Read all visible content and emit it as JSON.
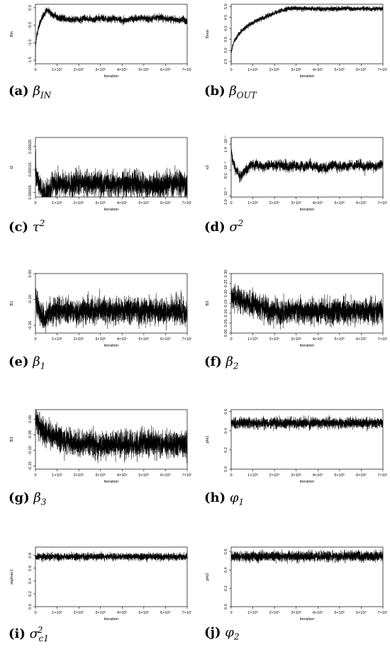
{
  "x_axis": {
    "label": "iteration",
    "ticks": [
      {
        "value": 0,
        "label": "0"
      },
      {
        "value": 100000,
        "label": "1×10⁵"
      },
      {
        "value": 200000,
        "label": "2×10⁵"
      },
      {
        "value": 300000,
        "label": "3×10⁵"
      },
      {
        "value": 400000,
        "label": "4×10⁵"
      },
      {
        "value": 500000,
        "label": "5×10⁵"
      },
      {
        "value": 600000,
        "label": "6×10⁵"
      },
      {
        "value": 700000,
        "label": "7×10⁵"
      }
    ]
  },
  "captions": [
    {
      "tag": "(a)",
      "symbol": "β",
      "sub": "IN",
      "sup": ""
    },
    {
      "tag": "(b)",
      "symbol": "β",
      "sub": "OUT",
      "sup": ""
    },
    {
      "tag": "(c)",
      "symbol": "τ",
      "sub": "",
      "sup": "2"
    },
    {
      "tag": "(d)",
      "symbol": "σ",
      "sub": "",
      "sup": "2"
    },
    {
      "tag": "(e)",
      "symbol": "β",
      "sub": "1",
      "sup": ""
    },
    {
      "tag": "(f)",
      "symbol": "β",
      "sub": "2",
      "sup": ""
    },
    {
      "tag": "(g)",
      "symbol": "β",
      "sub": "3",
      "sup": ""
    },
    {
      "tag": "(h)",
      "symbol": "φ",
      "sub": "1",
      "sup": ""
    },
    {
      "tag": "(i)",
      "symbol": "σ",
      "sub": "c1",
      "sup": "2"
    },
    {
      "tag": "(j)",
      "symbol": "φ",
      "sub": "2",
      "sup": ""
    }
  ],
  "chart_data": [
    {
      "type": "line",
      "ylabel": "Bin",
      "ylim": [
        -1.6,
        0.1
      ],
      "yticks": [
        {
          "value": 0,
          "label": "0.0"
        },
        {
          "value": -0.5,
          "label": "-0.5"
        },
        {
          "value": -1.0,
          "label": "-1.0"
        },
        {
          "value": -1.5,
          "label": "-1.5"
        }
      ],
      "xlim": [
        0,
        700000
      ],
      "trace": {
        "start": -1.5,
        "burnin_end": -0.05,
        "burnin_iters": 50000,
        "mean": -0.32,
        "noise": 0.07,
        "wander": 0.06
      }
    },
    {
      "type": "line",
      "ylabel": "Bout",
      "ylim": [
        2.4,
        5.1
      ],
      "yticks": [
        {
          "value": 2.5,
          "label": "2.5"
        },
        {
          "value": 3.0,
          "label": "3.0"
        },
        {
          "value": 3.5,
          "label": "3.5"
        },
        {
          "value": 4.0,
          "label": "4.0"
        },
        {
          "value": 4.5,
          "label": "4.5"
        },
        {
          "value": 5.0,
          "label": "5.0"
        }
      ],
      "xlim": [
        0,
        700000
      ],
      "trace": {
        "start": 2.5,
        "burnin_end": 4.4,
        "burnin_iters": 120000,
        "mean": 4.9,
        "noise": 0.07,
        "wander": 0.04
      }
    },
    {
      "type": "line",
      "ylabel": "t2",
      "ylim": [
        3e-05,
        0.00029
      ],
      "yticks": [
        {
          "value": 5e-05,
          "label": "0.00005"
        },
        {
          "value": 0.00015,
          "label": "0.00015"
        },
        {
          "value": 0.00025,
          "label": "0.00025"
        }
      ],
      "xlim": [
        0,
        700000
      ],
      "trace": {
        "start": 0.00021,
        "burnin_end": 4e-05,
        "burnin_iters": 40000,
        "mean": 8.5e-05,
        "noise": 4e-05,
        "wander": 1e-05
      }
    },
    {
      "type": "line",
      "ylabel": "s2",
      "ylim": [
        1.8e-08,
        1.55e-07
      ],
      "yticks": [
        {
          "value": 2e-08,
          "label": "2.0 · 10⁻⁸"
        },
        {
          "value": 8e-08,
          "label": "8.0 · 10⁻⁸"
        },
        {
          "value": 1.4e-07,
          "label": "1.4 · 10⁻⁷"
        }
      ],
      "xlim": [
        0,
        700000
      ],
      "trace": {
        "start": 1.45e-07,
        "burnin_end": 6.5e-08,
        "burnin_iters": 40000,
        "mean": 8.8e-08,
        "noise": 8e-09,
        "wander": 1e-08
      }
    },
    {
      "type": "line",
      "ylabel": "B1",
      "ylim": [
        -0.23,
        0.0
      ],
      "yticks": [
        {
          "value": 0.0,
          "label": "0.00"
        },
        {
          "value": -0.1,
          "label": "-0.10"
        },
        {
          "value": -0.2,
          "label": "-0.20"
        }
      ],
      "xlim": [
        0,
        700000
      ],
      "trace": {
        "start": -0.05,
        "burnin_end": -0.17,
        "burnin_iters": 40000,
        "mean": -0.145,
        "noise": 0.035,
        "wander": 0.01
      }
    },
    {
      "type": "line",
      "ylabel": "B2",
      "ylim": [
        0.0,
        0.3
      ],
      "yticks": [
        {
          "value": 0.0,
          "label": "0.00"
        },
        {
          "value": 0.05,
          "label": "0.05"
        },
        {
          "value": 0.1,
          "label": "0.10"
        },
        {
          "value": 0.15,
          "label": "0.15"
        },
        {
          "value": 0.2,
          "label": "0.20"
        },
        {
          "value": 0.25,
          "label": "0.25"
        },
        {
          "value": 0.3,
          "label": "0.30"
        }
      ],
      "xlim": [
        0,
        700000
      ],
      "trace": {
        "start": 0.22,
        "burnin_end": 0.15,
        "burnin_iters": 80000,
        "mean": 0.11,
        "noise": 0.045,
        "wander": 0.008
      }
    },
    {
      "type": "line",
      "ylabel": "B3",
      "ylim": [
        -0.16,
        0.03
      ],
      "yticks": [
        {
          "value": 0.0,
          "label": "0.00"
        },
        {
          "value": -0.05,
          "label": "-0.05"
        },
        {
          "value": -0.1,
          "label": "-0.10"
        },
        {
          "value": -0.15,
          "label": "-0.15"
        }
      ],
      "xlim": [
        0,
        700000
      ],
      "trace": {
        "start": 0.02,
        "burnin_end": -0.06,
        "burnin_iters": 90000,
        "mean": -0.08,
        "noise": 0.03,
        "wander": 0.006
      }
    },
    {
      "type": "line",
      "ylabel": "phi1",
      "ylim": [
        0.0,
        0.62
      ],
      "yticks": [
        {
          "value": 0.0,
          "label": "0.0"
        },
        {
          "value": 0.2,
          "label": "0.2"
        },
        {
          "value": 0.4,
          "label": "0.4"
        },
        {
          "value": 0.6,
          "label": "0.6"
        }
      ],
      "xlim": [
        0,
        700000
      ],
      "trace": {
        "start": 0.48,
        "burnin_end": 0.48,
        "burnin_iters": 0,
        "mean": 0.48,
        "noise": 0.04,
        "wander": 0.0
      }
    },
    {
      "type": "line",
      "ylabel": "sigmac1",
      "ylim": [
        0.0,
        0.93
      ],
      "yticks": [
        {
          "value": 0.0,
          "label": "0.0"
        },
        {
          "value": 0.2,
          "label": "0.2"
        },
        {
          "value": 0.4,
          "label": "0.4"
        },
        {
          "value": 0.6,
          "label": "0.6"
        },
        {
          "value": 0.8,
          "label": "0.8"
        }
      ],
      "xlim": [
        0,
        700000
      ],
      "trace": {
        "start": 0.78,
        "burnin_end": 0.78,
        "burnin_iters": 0,
        "mean": 0.78,
        "noise": 0.04,
        "wander": 0.0
      }
    },
    {
      "type": "line",
      "ylabel": "phi2",
      "ylim": [
        0.0,
        0.65
      ],
      "yticks": [
        {
          "value": 0.0,
          "label": "0.0"
        },
        {
          "value": 0.2,
          "label": "0.2"
        },
        {
          "value": 0.4,
          "label": "0.4"
        },
        {
          "value": 0.6,
          "label": "0.6"
        }
      ],
      "xlim": [
        0,
        700000
      ],
      "trace": {
        "start": 0.55,
        "burnin_end": 0.55,
        "burnin_iters": 0,
        "mean": 0.55,
        "noise": 0.04,
        "wander": 0.0
      }
    }
  ]
}
